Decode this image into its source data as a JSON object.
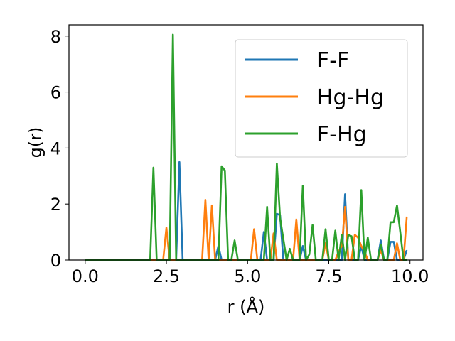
{
  "chart_data": {
    "type": "line",
    "xlabel": "r (Å)",
    "ylabel": "g(r)",
    "xlim": [
      -0.5,
      10.4
    ],
    "ylim": [
      0,
      8.4
    ],
    "xticks": [
      0.0,
      2.5,
      5.0,
      7.5,
      10.0
    ],
    "xtick_labels": [
      "0.0",
      "2.5",
      "5.0",
      "7.5",
      "10.0"
    ],
    "yticks": [
      0,
      2,
      4,
      6,
      8
    ],
    "ytick_labels": [
      "0",
      "2",
      "4",
      "6",
      "8"
    ],
    "grid": false,
    "legend_position": "top-right",
    "colors": {
      "F-F": "#1f77b4",
      "Hg-Hg": "#ff7f0e",
      "F-Hg": "#2ca02c"
    },
    "series": [
      {
        "name": "F-F",
        "x": [
          0.0,
          2.8,
          2.9,
          3.0,
          3.1,
          4.0,
          4.1,
          4.2,
          5.4,
          5.5,
          5.6,
          5.8,
          5.9,
          6.0,
          6.1,
          6.2,
          6.6,
          6.7,
          6.8,
          7.5,
          7.6,
          7.9,
          8.0,
          8.1,
          8.2,
          8.4,
          8.5,
          8.6,
          8.7,
          9.0,
          9.1,
          9.2,
          9.3,
          9.4,
          9.5,
          9.6,
          9.8,
          9.9
        ],
        "y": [
          0,
          0,
          3.5,
          0,
          0,
          0,
          0.5,
          0,
          0,
          1.0,
          0,
          0,
          1.65,
          1.6,
          0,
          0,
          0,
          0.5,
          0,
          0,
          0,
          0,
          2.35,
          0,
          0,
          0,
          0.5,
          0,
          0,
          0,
          0.7,
          0,
          0,
          0.65,
          0.65,
          0,
          0,
          0.35
        ]
      },
      {
        "name": "Hg-Hg",
        "x": [
          0.0,
          2.4,
          2.5,
          2.6,
          3.6,
          3.7,
          3.8,
          3.9,
          4.0,
          5.1,
          5.2,
          5.3,
          5.7,
          5.8,
          5.9,
          6.0,
          6.4,
          6.5,
          6.6,
          7.3,
          7.4,
          7.5,
          7.7,
          7.8,
          7.9,
          8.0,
          8.1,
          8.2,
          8.3,
          8.4,
          8.5,
          8.6,
          8.7,
          9.0,
          9.1,
          9.2,
          9.5,
          9.6,
          9.7,
          9.8,
          9.9
        ],
        "y": [
          0,
          0,
          1.15,
          0,
          0,
          2.15,
          0,
          1.95,
          0,
          0,
          1.1,
          0,
          0,
          0.95,
          0,
          0,
          0,
          1.45,
          0,
          0,
          0.6,
          0,
          0,
          0.3,
          0.5,
          1.9,
          0,
          0,
          0.9,
          0.8,
          0.5,
          0.3,
          0,
          0,
          0.35,
          0,
          0,
          0.6,
          0,
          0,
          1.55
        ]
      },
      {
        "name": "F-Hg",
        "x": [
          0.0,
          2.0,
          2.1,
          2.2,
          2.6,
          2.7,
          2.8,
          4.1,
          4.2,
          4.3,
          4.4,
          4.5,
          4.6,
          4.7,
          4.8,
          5.5,
          5.6,
          5.7,
          5.8,
          5.9,
          6.0,
          6.2,
          6.3,
          6.4,
          6.6,
          6.7,
          6.8,
          6.9,
          7.0,
          7.1,
          7.3,
          7.4,
          7.5,
          7.6,
          7.7,
          7.8,
          7.9,
          8.0,
          8.1,
          8.2,
          8.3,
          8.4,
          8.5,
          8.6,
          8.7,
          8.8,
          8.9,
          9.0,
          9.1,
          9.2,
          9.3,
          9.4,
          9.5,
          9.6,
          9.7,
          9.8,
          9.9
        ],
        "y": [
          0,
          0,
          3.3,
          0,
          0,
          8.05,
          0,
          0,
          3.35,
          3.2,
          0,
          0,
          0.7,
          0,
          0,
          0,
          1.9,
          0,
          0,
          3.45,
          1.5,
          0,
          0.4,
          0,
          0,
          2.65,
          0,
          0.2,
          1.25,
          0,
          0,
          1.1,
          0,
          0,
          1.05,
          0,
          0.9,
          0,
          0.9,
          0.85,
          0,
          0,
          2.5,
          0,
          0.8,
          0,
          0,
          0,
          0.55,
          0,
          0,
          1.35,
          1.35,
          1.95,
          1.0,
          0,
          0
        ]
      }
    ]
  }
}
